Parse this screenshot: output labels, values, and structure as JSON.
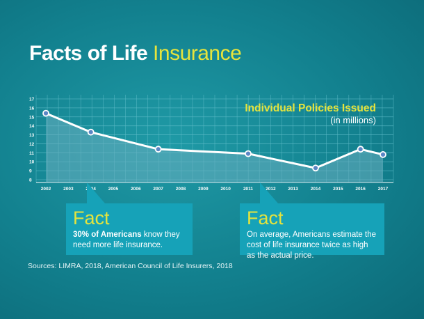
{
  "header": {
    "title_main": "Facts of Life",
    "title_highlight": "Insurance"
  },
  "chart_data": {
    "type": "area",
    "title": "Individual Policies Issued",
    "subtitle": "(in millions)",
    "x": [
      2002,
      2004,
      2007,
      2011,
      2014,
      2016,
      2017
    ],
    "series": [
      {
        "values": [
          15.4,
          13.3,
          11.4,
          10.9,
          9.3,
          11.4,
          10.8
        ]
      }
    ],
    "x_ticks": [
      "2002",
      "2003",
      "2004",
      "2005",
      "2006",
      "2007",
      "2008",
      "2009",
      "2010",
      "2011",
      "2012",
      "2013",
      "2014",
      "2015",
      "2016",
      "2017"
    ],
    "y_ticks": [
      "8",
      "9",
      "10",
      "11",
      "12",
      "13",
      "14",
      "15",
      "16",
      "17"
    ],
    "xlim": [
      2002,
      2017
    ],
    "ylim": [
      8,
      17
    ],
    "grid": true,
    "colors": {
      "line": "#ffffff",
      "title": "#e6e43c",
      "grid": "#5fbcc8",
      "fill": "#6aaec0"
    }
  },
  "facts": [
    {
      "heading": "Fact",
      "bold_text": "30% of Americans",
      "text": " know they need more life insurance."
    },
    {
      "heading": "Fact",
      "bold_text": "",
      "text": "On average, Americans estimate the cost of life insurance twice as high as the actual price."
    }
  ],
  "footer": {
    "sources": "Sources: LIMRA, 2018, American Council of Life Insurers, 2018"
  }
}
